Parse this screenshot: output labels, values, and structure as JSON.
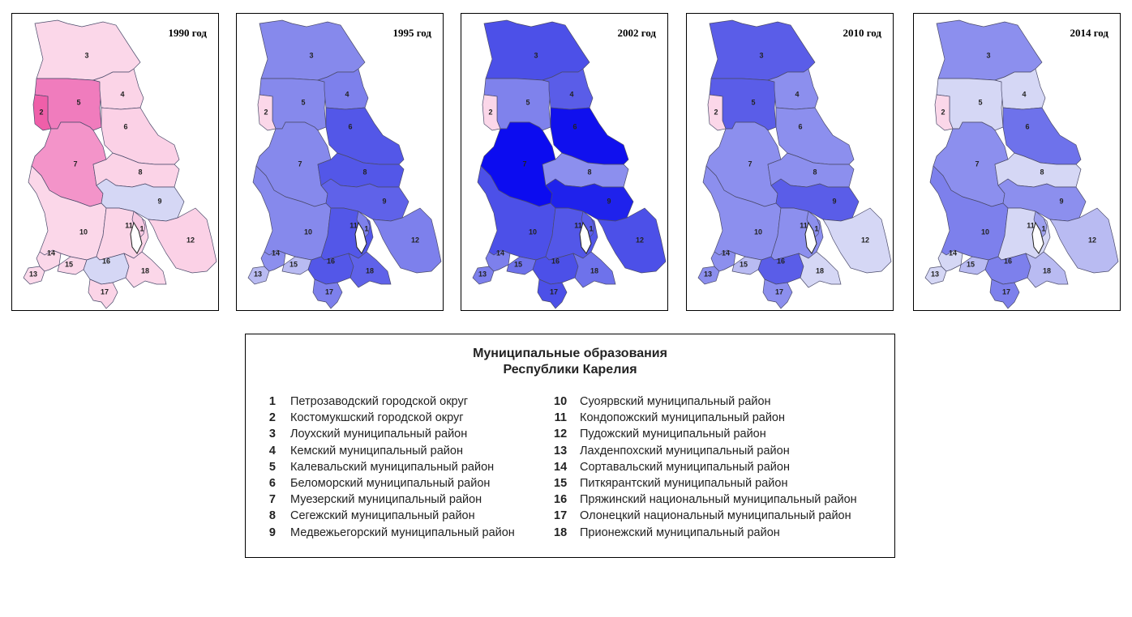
{
  "maps": [
    {
      "year": "1990 год",
      "colors": {
        "1": "#f7c9e2",
        "2": "#ef5fa9",
        "3": "#fbd7e9",
        "4": "#fbd4e7",
        "5": "#f07cbd",
        "6": "#fbd1e6",
        "7": "#f394c9",
        "8": "#fbd3e7",
        "9": "#d5d7f5",
        "10": "#fbd7e9",
        "11": "#fbd4e7",
        "12": "#fbd1e6",
        "13": "#fbd9ea",
        "14": "#fbd7e9",
        "15": "#fbd7e9",
        "16": "#d5d7f5",
        "17": "#fbd4e7",
        "18": "#fbd7e9"
      }
    },
    {
      "year": "1995 год",
      "colors": {
        "1": "#7d80ec",
        "2": "#fbd7e9",
        "3": "#8689ec",
        "4": "#7d80ec",
        "5": "#8689ec",
        "6": "#5357e8",
        "7": "#8689ec",
        "8": "#5357e8",
        "9": "#5f62e9",
        "10": "#8689ec",
        "11": "#5357e8",
        "12": "#7d80ec",
        "13": "#b9bbf2",
        "14": "#8c8fee",
        "15": "#b9bbf2",
        "16": "#5357e8",
        "17": "#7d80ec",
        "18": "#5f62e9"
      }
    },
    {
      "year": "2002 год",
      "colors": {
        "1": "#5a5de8",
        "2": "#fbd7e9",
        "3": "#4c50e8",
        "4": "#5a5de8",
        "5": "#7f82ec",
        "6": "#1010ee",
        "7": "#0c0cf0",
        "8": "#8c8fee",
        "9": "#1f22ec",
        "10": "#4c50e8",
        "11": "#5357e8",
        "12": "#4c50e8",
        "13": "#7d80ec",
        "14": "#7d80ec",
        "15": "#6e72eb",
        "16": "#4c50e8",
        "17": "#4c50e8",
        "18": "#6e72eb"
      }
    },
    {
      "year": "2010 год",
      "colors": {
        "1": "#8c8fee",
        "2": "#fbd7e9",
        "3": "#5a5de8",
        "4": "#8c8fee",
        "5": "#5a5de8",
        "6": "#8c8fee",
        "7": "#8c8fee",
        "8": "#8c8fee",
        "9": "#5a5de8",
        "10": "#8c8fee",
        "11": "#8c8fee",
        "12": "#d5d7f5",
        "13": "#8c8fee",
        "14": "#8c8fee",
        "15": "#b9bbf2",
        "16": "#5a5de8",
        "17": "#8c8fee",
        "18": "#d5d7f5"
      }
    },
    {
      "year": "2014 год",
      "colors": {
        "1": "#9ea1ef",
        "2": "#fbd7e9",
        "3": "#8c8fee",
        "4": "#d5d7f5",
        "5": "#d5d7f5",
        "6": "#6e72eb",
        "7": "#8c8fee",
        "8": "#d5d7f5",
        "9": "#8c8fee",
        "10": "#7d80ec",
        "11": "#d5d7f5",
        "12": "#b9bbf2",
        "13": "#d5d7f5",
        "14": "#d5d7f5",
        "15": "#b9bbf2",
        "16": "#7d80ec",
        "17": "#7d80ec",
        "18": "#b9bbf2"
      }
    }
  ],
  "legend": {
    "title_line1": "Муниципальные образования",
    "title_line2": "Республики Карелия",
    "items": [
      {
        "num": "1",
        "name": "Петрозаводский городской округ"
      },
      {
        "num": "2",
        "name": "Костомукшский городской округ"
      },
      {
        "num": "3",
        "name": "Лоухский муниципальный район"
      },
      {
        "num": "4",
        "name": "Кемский муниципальный район"
      },
      {
        "num": "5",
        "name": "Калевальский муниципальный район"
      },
      {
        "num": "6",
        "name": "Беломорский муниципальный район"
      },
      {
        "num": "7",
        "name": "Муезерский муниципальный район"
      },
      {
        "num": "8",
        "name": "Сегежский муниципальный район"
      },
      {
        "num": "9",
        "name": "Медвежьегорский муниципальный район"
      },
      {
        "num": "10",
        "name": "Суоярвский муниципальный район"
      },
      {
        "num": "11",
        "name": "Кондопожский муниципальный район"
      },
      {
        "num": "12",
        "name": "Пудожский муниципальный район"
      },
      {
        "num": "13",
        "name": "Лахденпохский муниципальный район"
      },
      {
        "num": "14",
        "name": "Сортавальский муниципальный район"
      },
      {
        "num": "15",
        "name": "Питкярантский муниципальный район"
      },
      {
        "num": "16",
        "name": "Пряжинский национальный муниципальный район"
      },
      {
        "num": "17",
        "name": "Олонецкий национальный муниципальный район"
      },
      {
        "num": "18",
        "name": "Прионежский муниципальный район"
      }
    ]
  }
}
